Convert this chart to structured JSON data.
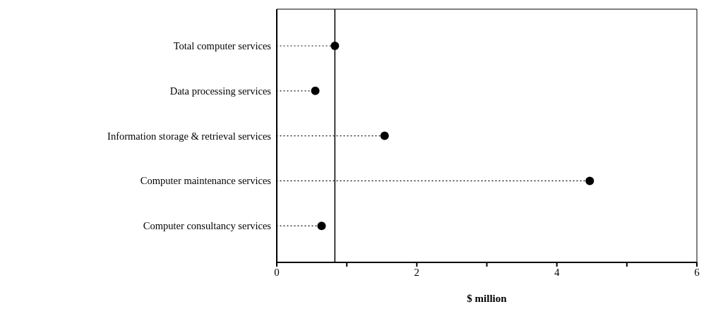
{
  "chart_data": {
    "type": "lollipop",
    "orientation": "horizontal",
    "xlabel": "$ million",
    "categories": [
      "Total computer services",
      "Data processing services",
      "Information storage & retrieval services",
      "Computer maintenance services",
      "Computer consultancy services"
    ],
    "values": [
      0.83,
      0.55,
      1.54,
      4.47,
      0.64
    ],
    "color": "#000000",
    "xlim": [
      0,
      6
    ],
    "xticks": [
      0,
      {
        "value": 1,
        "label": null
      },
      2,
      {
        "value": 3,
        "label": null
      },
      4,
      {
        "value": 5,
        "label": null
      },
      6
    ],
    "ref_lines": [
      {
        "axis": "x",
        "value": 0.83,
        "color": "#000000",
        "line_style": "solid"
      }
    ],
    "marker": "circle",
    "line_style": "dotted"
  }
}
